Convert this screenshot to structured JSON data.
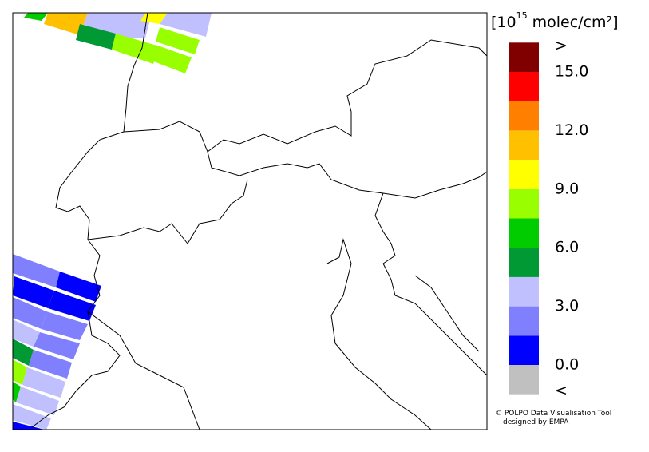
{
  "colorbar": {
    "title": {
      "base": "[10",
      "exponent": "15",
      "unit": "molec/cm²]"
    },
    "lim": [
      0,
      15
    ],
    "bounds": [
      0,
      1.5,
      3,
      4.5,
      6,
      7.5,
      9,
      10.5,
      12,
      13.5,
      15
    ],
    "colors": [
      "#0000ff",
      "#8080ff",
      "#c0c0ff",
      "#009933",
      "#00cc00",
      "#99ff00",
      "#ffff00",
      "#ffc000",
      "#ff8000",
      "#ff0000"
    ],
    "under_color": "#c0c0c0",
    "over_color": "#800000",
    "under_label": "<",
    "over_label": ">",
    "ticks": [
      {
        "value": 0,
        "label": "0.0"
      },
      {
        "value": 3,
        "label": "3.0"
      },
      {
        "value": 6,
        "label": "6.0"
      },
      {
        "value": 9,
        "label": "9.0"
      },
      {
        "value": 12,
        "label": "12.0"
      },
      {
        "value": 15,
        "label": "15.0"
      }
    ]
  },
  "credit": [
    "© POLPO Data Visualisation Tool",
    "designed by EMPA"
  ]
}
